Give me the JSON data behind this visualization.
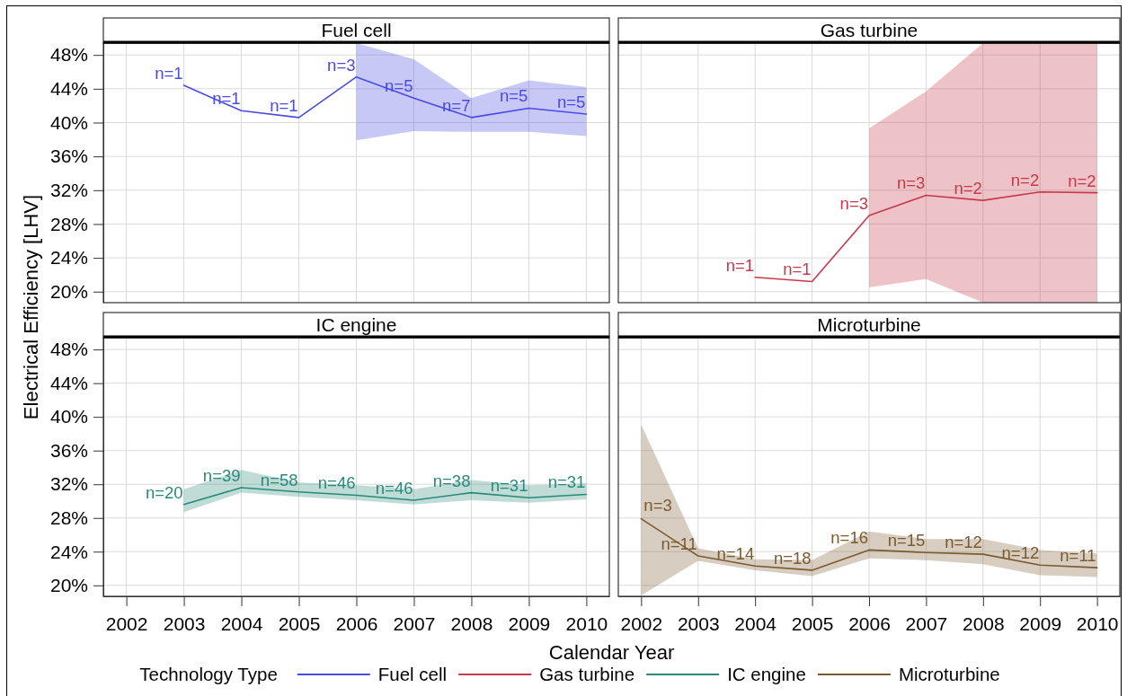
{
  "chart_data": [
    {
      "type": "line",
      "title": "Fuel cell",
      "ylabel": "Electrical Efficiency [LHV]",
      "legend_title": "Technology Type",
      "legend": "bottom",
      "grid": true,
      "tick_labels": "y",
      "x": [
        2003,
        2004,
        2005,
        2006,
        2007,
        2008,
        2009,
        2010
      ],
      "series": [
        {
          "name": "Fuel cell",
          "color": "#4a4ae6",
          "values": [
            44.4,
            41.4,
            40.6,
            45.4,
            42.9,
            40.6,
            41.7,
            41.0
          ],
          "lower": [
            null,
            null,
            null,
            37.9,
            39.0,
            38.9,
            38.9,
            38.4
          ],
          "upper": [
            null,
            null,
            null,
            49.4,
            47.5,
            42.9,
            45.0,
            44.2
          ]
        }
      ],
      "annotations": [
        {
          "text": "n=1",
          "x": 2003,
          "y": 44.4
        },
        {
          "text": "n=1",
          "x": 2004,
          "y": 41.4
        },
        {
          "text": "n=1",
          "x": 2005,
          "y": 40.6
        },
        {
          "text": "n=3",
          "x": 2006,
          "y": 45.4
        },
        {
          "text": "n=5",
          "x": 2007,
          "y": 42.9
        },
        {
          "text": "n=7",
          "x": 2008,
          "y": 40.6
        },
        {
          "text": "n=5",
          "x": 2009,
          "y": 41.7
        },
        {
          "text": "n=5",
          "x": 2010,
          "y": 41.0
        }
      ],
      "xlim": [
        2001.6,
        2010.4
      ],
      "xticks": [
        2002,
        2003,
        2004,
        2005,
        2006,
        2007,
        2008,
        2009,
        2010
      ],
      "ylim": [
        18.7,
        49.4
      ],
      "yticks": [
        {
          "value": 20,
          "label": "20%"
        },
        {
          "value": 24,
          "label": "24%"
        },
        {
          "value": 28,
          "label": "28%"
        },
        {
          "value": 32,
          "label": "32%"
        },
        {
          "value": 36,
          "label": "36%"
        },
        {
          "value": 40,
          "label": "40%"
        },
        {
          "value": 44,
          "label": "44%"
        },
        {
          "value": 48,
          "label": "48%"
        }
      ]
    },
    {
      "type": "line",
      "title": "Gas turbine",
      "legend": "bottom",
      "grid": true,
      "tick_labels": false,
      "x": [
        2004,
        2005,
        2006,
        2007,
        2008,
        2009,
        2010
      ],
      "series": [
        {
          "name": "Gas turbine",
          "color": "#c8384a",
          "values": [
            21.7,
            21.2,
            29.0,
            31.4,
            30.8,
            31.8,
            31.7
          ],
          "lower": [
            null,
            null,
            20.5,
            21.5,
            18.7,
            18.7,
            18.7
          ],
          "upper": [
            null,
            null,
            39.3,
            43.7,
            49.4,
            49.4,
            49.4
          ]
        }
      ],
      "annotations": [
        {
          "text": "n=1",
          "x": 2004,
          "y": 21.7
        },
        {
          "text": "n=1",
          "x": 2005,
          "y": 21.2
        },
        {
          "text": "n=3",
          "x": 2006,
          "y": 29.0
        },
        {
          "text": "n=3",
          "x": 2007,
          "y": 31.4
        },
        {
          "text": "n=2",
          "x": 2008,
          "y": 30.8
        },
        {
          "text": "n=2",
          "x": 2009,
          "y": 31.8
        },
        {
          "text": "n=2",
          "x": 2010,
          "y": 31.7
        }
      ],
      "xlim": [
        2001.6,
        2010.4
      ],
      "xticks": [
        2002,
        2003,
        2004,
        2005,
        2006,
        2007,
        2008,
        2009,
        2010
      ],
      "ylim": [
        18.7,
        49.4
      ],
      "yticks": [
        20,
        24,
        28,
        32,
        36,
        40,
        44,
        48
      ]
    },
    {
      "type": "line",
      "title": "IC engine",
      "xlabel": "Calendar Year",
      "legend": "bottom",
      "grid": true,
      "x": [
        2003,
        2004,
        2005,
        2006,
        2007,
        2008,
        2009,
        2010
      ],
      "series": [
        {
          "name": "IC engine",
          "color": "#2a8a7a",
          "values": [
            29.6,
            31.6,
            31.1,
            30.7,
            30.1,
            31.0,
            30.4,
            30.8
          ],
          "lower": [
            28.7,
            31.0,
            30.5,
            30.1,
            29.6,
            30.1,
            29.8,
            30.2
          ],
          "upper": [
            31.4,
            33.7,
            32.2,
            31.9,
            31.4,
            32.5,
            31.9,
            32.1
          ]
        }
      ],
      "annotations": [
        {
          "text": "n=20",
          "x": 2003,
          "y": 29.6
        },
        {
          "text": "n=39",
          "x": 2004,
          "y": 31.6
        },
        {
          "text": "n=58",
          "x": 2005,
          "y": 31.1
        },
        {
          "text": "n=46",
          "x": 2006,
          "y": 30.7
        },
        {
          "text": "n=46",
          "x": 2007,
          "y": 30.1
        },
        {
          "text": "n=38",
          "x": 2008,
          "y": 31.0
        },
        {
          "text": "n=31",
          "x": 2009,
          "y": 30.4
        },
        {
          "text": "n=31",
          "x": 2010,
          "y": 30.8
        }
      ],
      "xlim": [
        2001.6,
        2010.4
      ],
      "xticks": [
        2002,
        2003,
        2004,
        2005,
        2006,
        2007,
        2008,
        2009,
        2010
      ],
      "ylim": [
        18.7,
        49.4
      ],
      "yticks": [
        {
          "value": 20,
          "label": "20%"
        },
        {
          "value": 24,
          "label": "24%"
        },
        {
          "value": 28,
          "label": "28%"
        },
        {
          "value": 32,
          "label": "32%"
        },
        {
          "value": 36,
          "label": "36%"
        },
        {
          "value": 40,
          "label": "40%"
        },
        {
          "value": 44,
          "label": "44%"
        },
        {
          "value": 48,
          "label": "48%"
        }
      ]
    },
    {
      "type": "line",
      "title": "Microturbine",
      "legend": "bottom",
      "grid": true,
      "tick_labels": "x",
      "x": [
        2002,
        2003,
        2004,
        2005,
        2006,
        2007,
        2008,
        2009,
        2010
      ],
      "series": [
        {
          "name": "Microturbine",
          "color": "#7b5a2e",
          "values": [
            27.9,
            23.5,
            22.3,
            21.8,
            24.2,
            23.9,
            23.7,
            22.4,
            22.1
          ],
          "lower": [
            18.8,
            22.9,
            21.8,
            21.1,
            23.2,
            23.0,
            22.5,
            21.2,
            21.0
          ],
          "upper": [
            39.1,
            24.4,
            23.1,
            23.0,
            26.4,
            25.5,
            25.5,
            24.2,
            23.8
          ]
        }
      ],
      "annotations": [
        {
          "text": "n=3",
          "x": 2002,
          "y": 27.9
        },
        {
          "text": "n=11",
          "x": 2003,
          "y": 23.5
        },
        {
          "text": "n=14",
          "x": 2004,
          "y": 22.3
        },
        {
          "text": "n=18",
          "x": 2005,
          "y": 21.8
        },
        {
          "text": "n=16",
          "x": 2006,
          "y": 24.2
        },
        {
          "text": "n=15",
          "x": 2007,
          "y": 23.9
        },
        {
          "text": "n=12",
          "x": 2008,
          "y": 23.7
        },
        {
          "text": "n=12",
          "x": 2009,
          "y": 22.4
        },
        {
          "text": "n=11",
          "x": 2010,
          "y": 22.1
        }
      ],
      "xlim": [
        2001.6,
        2010.4
      ],
      "xticks": [
        2002,
        2003,
        2004,
        2005,
        2006,
        2007,
        2008,
        2009,
        2010
      ],
      "ylim": [
        18.7,
        49.4
      ],
      "yticks": [
        20,
        24,
        28,
        32,
        36,
        40,
        44,
        48
      ]
    }
  ]
}
